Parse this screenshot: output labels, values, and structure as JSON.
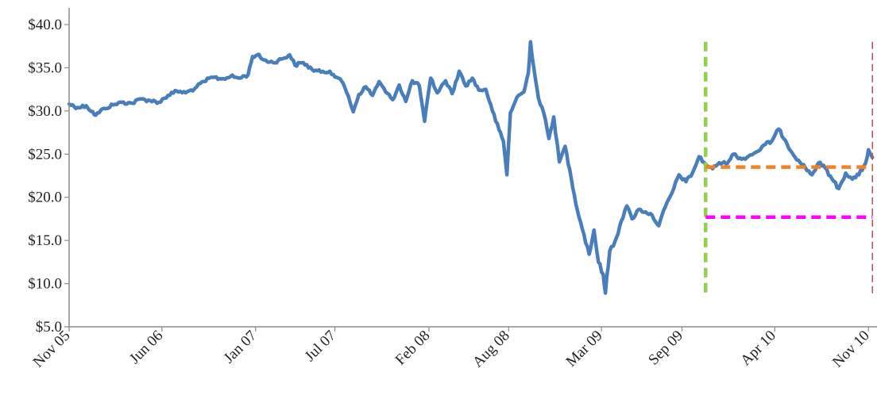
{
  "chart_data": {
    "type": "line",
    "title": "",
    "xlabel": "",
    "ylabel": "",
    "ylim": [
      5,
      40
    ],
    "xlim": [
      "2005-11-01",
      "2010-11-15"
    ],
    "y_ticks": [
      "$5.0",
      "$10.0",
      "$15.0",
      "$20.0",
      "$25.0",
      "$30.0",
      "$35.0",
      "$40.0"
    ],
    "y_tick_values": [
      5,
      10,
      15,
      20,
      25,
      30,
      35,
      40
    ],
    "x_ticks": [
      "Nov 05",
      "Jun 06",
      "Jan 07",
      "Jul 07",
      "Feb 08",
      "Aug 08",
      "Mar 09",
      "Sep 09",
      "Apr 10",
      "Nov 10"
    ],
    "x_tick_dates": [
      "2005-11-01",
      "2006-06-01",
      "2007-01-01",
      "2007-07-01",
      "2008-02-01",
      "2008-08-01",
      "2009-03-01",
      "2009-09-01",
      "2010-04-01",
      "2010-11-01"
    ],
    "grid": false,
    "legend": "none",
    "series": [
      {
        "color": "#4a7ebb",
        "points": [
          [
            "2005-11-01",
            30.8
          ],
          [
            "2005-11-20",
            30.4
          ],
          [
            "2005-12-10",
            30.6
          ],
          [
            "2006-01-01",
            29.5
          ],
          [
            "2006-01-20",
            30.3
          ],
          [
            "2006-02-10",
            30.7
          ],
          [
            "2006-03-01",
            31.0
          ],
          [
            "2006-03-25",
            30.9
          ],
          [
            "2006-04-15",
            31.4
          ],
          [
            "2006-05-05",
            31.2
          ],
          [
            "2006-05-25",
            31.0
          ],
          [
            "2006-06-15",
            31.8
          ],
          [
            "2006-07-05",
            32.3
          ],
          [
            "2006-07-25",
            32.1
          ],
          [
            "2006-08-15",
            32.6
          ],
          [
            "2006-09-05",
            33.4
          ],
          [
            "2006-09-25",
            33.9
          ],
          [
            "2006-10-15",
            33.7
          ],
          [
            "2006-11-05",
            34.0
          ],
          [
            "2006-11-25",
            33.8
          ],
          [
            "2006-12-15",
            34.2
          ],
          [
            "2006-12-25",
            36.3
          ],
          [
            "2007-01-05",
            36.5
          ],
          [
            "2007-01-20",
            35.9
          ],
          [
            "2007-02-10",
            35.6
          ],
          [
            "2007-03-01",
            36.0
          ],
          [
            "2007-03-20",
            36.5
          ],
          [
            "2007-04-01",
            35.3
          ],
          [
            "2007-04-20",
            35.6
          ],
          [
            "2007-05-10",
            34.8
          ],
          [
            "2007-05-30",
            34.5
          ],
          [
            "2007-06-20",
            34.6
          ],
          [
            "2007-07-05",
            33.9
          ],
          [
            "2007-07-20",
            33.2
          ],
          [
            "2007-08-01",
            31.7
          ],
          [
            "2007-08-12",
            29.9
          ],
          [
            "2007-08-25",
            31.9
          ],
          [
            "2007-09-10",
            32.8
          ],
          [
            "2007-09-25",
            31.8
          ],
          [
            "2007-10-10",
            33.4
          ],
          [
            "2007-10-25",
            32.2
          ],
          [
            "2007-11-10",
            31.3
          ],
          [
            "2007-11-25",
            33.0
          ],
          [
            "2007-12-10",
            31.1
          ],
          [
            "2007-12-25",
            33.5
          ],
          [
            "2008-01-10",
            32.9
          ],
          [
            "2008-01-22",
            28.8
          ],
          [
            "2008-02-05",
            33.8
          ],
          [
            "2008-02-20",
            32.1
          ],
          [
            "2008-03-10",
            33.5
          ],
          [
            "2008-03-25",
            32.0
          ],
          [
            "2008-04-10",
            34.6
          ],
          [
            "2008-04-25",
            32.9
          ],
          [
            "2008-05-10",
            33.8
          ],
          [
            "2008-05-25",
            32.4
          ],
          [
            "2008-06-10",
            32.5
          ],
          [
            "2008-06-25",
            30.0
          ],
          [
            "2008-07-10",
            27.8
          ],
          [
            "2008-07-20",
            26.5
          ],
          [
            "2008-07-28",
            22.6
          ],
          [
            "2008-08-05",
            29.8
          ],
          [
            "2008-08-20",
            31.6
          ],
          [
            "2008-09-05",
            32.2
          ],
          [
            "2008-09-15",
            34.4
          ],
          [
            "2008-09-20",
            38.0
          ],
          [
            "2008-09-28",
            34.8
          ],
          [
            "2008-10-08",
            31.5
          ],
          [
            "2008-10-20",
            29.8
          ],
          [
            "2008-11-01",
            26.8
          ],
          [
            "2008-11-12",
            29.3
          ],
          [
            "2008-11-25",
            24.1
          ],
          [
            "2008-12-08",
            25.9
          ],
          [
            "2008-12-22",
            22.2
          ],
          [
            "2009-01-05",
            18.5
          ],
          [
            "2009-01-20",
            15.7
          ],
          [
            "2009-02-01",
            13.4
          ],
          [
            "2009-02-12",
            16.2
          ],
          [
            "2009-02-22",
            12.5
          ],
          [
            "2009-03-05",
            11.1
          ],
          [
            "2009-03-10",
            8.9
          ],
          [
            "2009-03-20",
            13.8
          ],
          [
            "2009-04-01",
            14.9
          ],
          [
            "2009-04-15",
            17.2
          ],
          [
            "2009-04-28",
            19.0
          ],
          [
            "2009-05-10",
            17.5
          ],
          [
            "2009-05-25",
            18.6
          ],
          [
            "2009-06-10",
            18.3
          ],
          [
            "2009-06-25",
            17.9
          ],
          [
            "2009-07-10",
            16.7
          ],
          [
            "2009-07-25",
            18.9
          ],
          [
            "2009-08-10",
            20.6
          ],
          [
            "2009-08-25",
            22.6
          ],
          [
            "2009-09-10",
            21.8
          ],
          [
            "2009-09-25",
            22.8
          ],
          [
            "2009-10-10",
            24.7
          ],
          [
            "2009-10-25",
            23.8
          ],
          [
            "2009-11-10",
            23.3
          ],
          [
            "2009-11-25",
            24.0
          ],
          [
            "2009-12-10",
            23.9
          ],
          [
            "2009-12-28",
            25.0
          ],
          [
            "2010-01-15",
            24.4
          ],
          [
            "2010-02-01",
            24.8
          ],
          [
            "2010-02-20",
            25.3
          ],
          [
            "2010-03-10",
            26.1
          ],
          [
            "2010-03-25",
            26.5
          ],
          [
            "2010-04-10",
            27.9
          ],
          [
            "2010-04-25",
            26.6
          ],
          [
            "2010-05-10",
            25.2
          ],
          [
            "2010-05-25",
            24.3
          ],
          [
            "2010-06-10",
            23.4
          ],
          [
            "2010-06-25",
            22.6
          ],
          [
            "2010-07-10",
            24.0
          ],
          [
            "2010-07-25",
            23.4
          ],
          [
            "2010-08-10",
            22.1
          ],
          [
            "2010-08-25",
            21.0
          ],
          [
            "2010-09-10",
            22.8
          ],
          [
            "2010-09-25",
            22.1
          ],
          [
            "2010-10-10",
            22.6
          ],
          [
            "2010-10-25",
            23.9
          ],
          [
            "2010-11-01",
            25.5
          ],
          [
            "2010-11-10",
            24.6
          ]
        ]
      }
    ],
    "reference_lines": [
      {
        "orientation": "vertical",
        "x": "2009-10-25",
        "y_range": [
          8.5,
          38.0
        ],
        "style": "dashed",
        "color": "#92d050"
      },
      {
        "orientation": "vertical",
        "x": "2010-11-10",
        "y_range": [
          8.5,
          38.0
        ],
        "style": "dashed",
        "color": "#c0504d"
      },
      {
        "orientation": "horizontal",
        "y": 23.5,
        "x_range": [
          "2009-10-25",
          "2010-11-10"
        ],
        "style": "dashed",
        "color": "#f58220"
      },
      {
        "orientation": "horizontal",
        "y": 17.7,
        "x_range": [
          "2009-10-25",
          "2010-11-10"
        ],
        "style": "dashed",
        "color": "#ff00ff"
      }
    ]
  }
}
